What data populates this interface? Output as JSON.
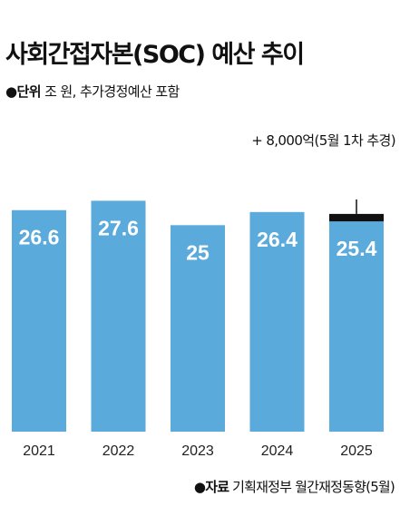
{
  "chart_data": {
    "type": "bar",
    "title": "사회간접자본(SOC) 예산 추이",
    "unit_label": "●단위",
    "unit_text": "조 원, 추가경정예산 포함",
    "categories": [
      "2021",
      "2022",
      "2023",
      "2024",
      "2025"
    ],
    "values": [
      26.6,
      27.6,
      25,
      26.4,
      25.4
    ],
    "value_labels": [
      "26.6",
      "27.6",
      "25",
      "26.4",
      "25.4"
    ],
    "annotation": {
      "category": "2025",
      "text": "+ 8,000억(5월 1차 추경)",
      "added_value": 0.8
    },
    "grid": false,
    "colors": {
      "bar": "#5aaadc",
      "addition": "#111111"
    }
  },
  "source": {
    "label": "●자료",
    "text": "기획재정부 월간재정동향(5월)"
  }
}
